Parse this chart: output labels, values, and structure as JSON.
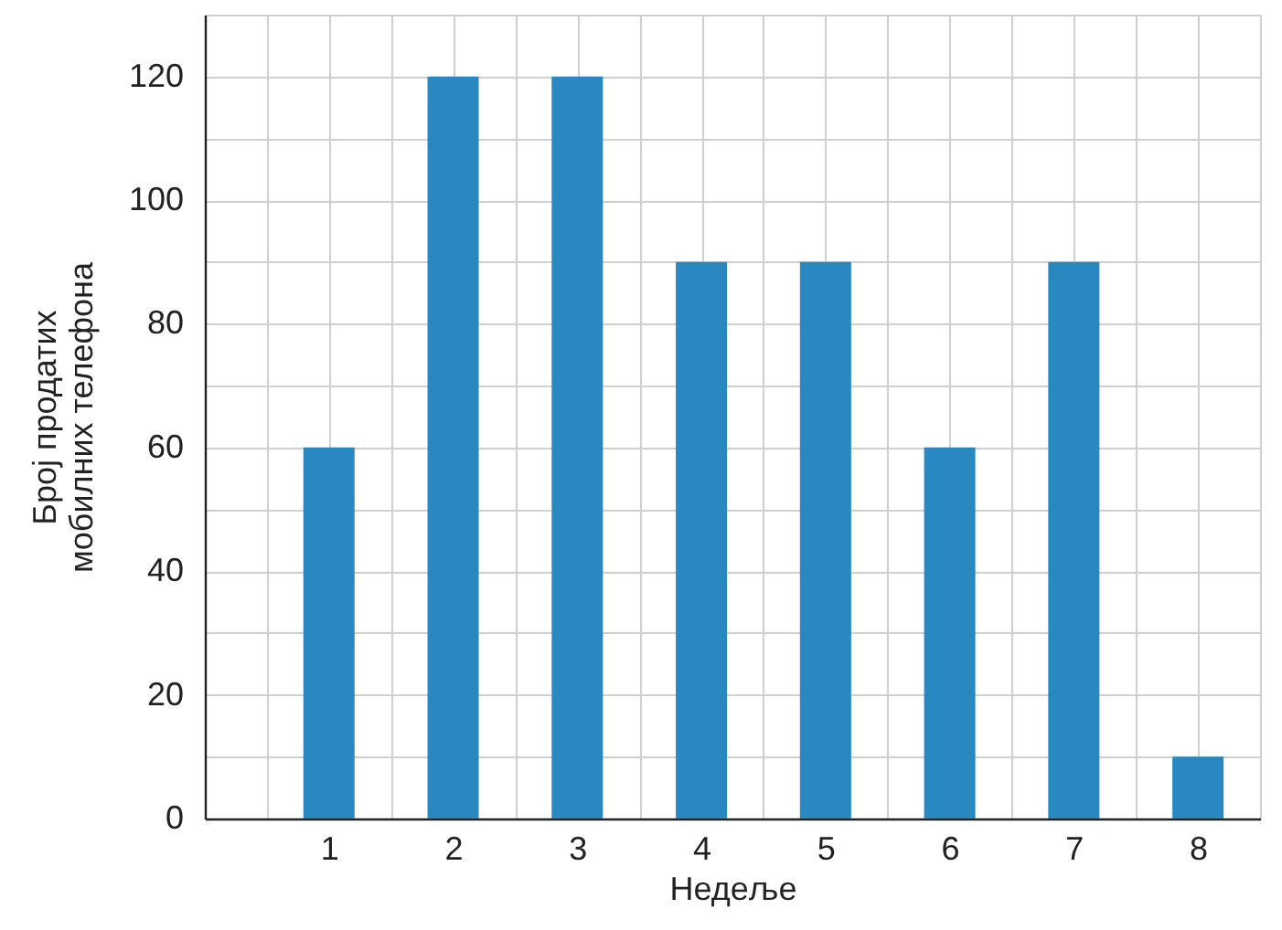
{
  "chart_data": {
    "type": "bar",
    "xlabel": "Недеље",
    "ylabel": "Број продатих\nмобилних телефона",
    "x": [
      1,
      2,
      3,
      4,
      5,
      6,
      7,
      8
    ],
    "series": [
      {
        "color": "#2a88c0",
        "values": [
          60,
          120,
          120,
          90,
          90,
          60,
          90,
          10
        ]
      }
    ],
    "xlim": [
      0,
      8.5
    ],
    "xticks": [
      {
        "value": 0.5,
        "label": null
      },
      1,
      {
        "value": 1.5,
        "label": null
      },
      2,
      {
        "value": 2.5,
        "label": null
      },
      3,
      {
        "value": 3.5,
        "label": null
      },
      4,
      {
        "value": 4.5,
        "label": null
      },
      5,
      {
        "value": 5.5,
        "label": null
      },
      6,
      {
        "value": 6.5,
        "label": null
      },
      7,
      {
        "value": 7.5,
        "label": null
      },
      8,
      {
        "value": 8.5,
        "label": null
      }
    ],
    "ylim": [
      0,
      130
    ],
    "yticks": [
      0,
      {
        "value": 10,
        "label": null
      },
      20,
      {
        "value": 30,
        "label": null
      },
      40,
      {
        "value": 50,
        "label": null
      },
      60,
      {
        "value": 70,
        "label": null
      },
      80,
      {
        "value": 90,
        "label": null
      },
      100,
      {
        "value": 110,
        "label": null
      },
      120,
      {
        "value": 130,
        "label": null
      }
    ],
    "grid": true
  }
}
